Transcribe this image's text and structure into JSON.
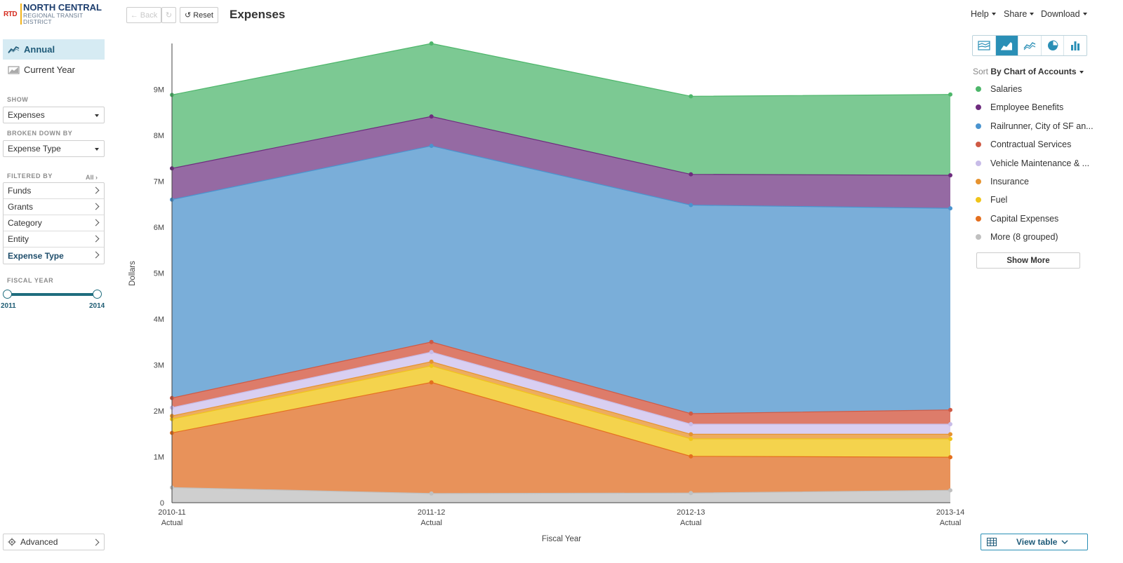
{
  "brand": {
    "short": "RTD",
    "line1": "NORTH CENTRAL",
    "line2": "REGIONAL TRANSIT",
    "line3": "DISTRICT"
  },
  "nav": {
    "annual": "Annual",
    "current_year": "Current Year"
  },
  "show": {
    "label": "SHOW",
    "value": "Expenses"
  },
  "broken_down_by": {
    "label": "BROKEN DOWN BY",
    "value": "Expense Type"
  },
  "filtered_by": {
    "label": "FILTERED BY",
    "all": "All",
    "items": [
      "Funds",
      "Grants",
      "Category",
      "Entity",
      "Expense Type"
    ]
  },
  "fiscal_year": {
    "label": "FISCAL YEAR",
    "min": "2011",
    "max": "2014"
  },
  "advanced": "Advanced",
  "toolbar": {
    "back": "Back",
    "reset": "Reset",
    "title": "Expenses",
    "help": "Help",
    "share": "Share",
    "download": "Download"
  },
  "sort": {
    "prefix": "Sort",
    "value": "By Chart of Accounts"
  },
  "legend": [
    {
      "name": "Salaries",
      "color": "#4db66a"
    },
    {
      "name": "Employee Benefits",
      "color": "#6e2c7e"
    },
    {
      "name": "Railrunner, City of SF an...",
      "color": "#4a94cf"
    },
    {
      "name": "Contractual Services",
      "color": "#cf5a45"
    },
    {
      "name": "Vehicle Maintenance & ...",
      "color": "#c8bce8"
    },
    {
      "name": "Insurance",
      "color": "#e6932f"
    },
    {
      "name": "Fuel",
      "color": "#f0c419"
    },
    {
      "name": "Capital Expenses",
      "color": "#e46f1e"
    },
    {
      "name": "More (8 grouped)",
      "color": "#c0c0c0"
    }
  ],
  "show_more": "Show More",
  "view_table": "View table",
  "chart_data": {
    "type": "area",
    "stacked": true,
    "xlabel": "Fiscal Year",
    "ylabel": "Dollars",
    "ylim": [
      0,
      10000000
    ],
    "yticks": [
      "0",
      "1M",
      "2M",
      "3M",
      "4M",
      "5M",
      "6M",
      "7M",
      "8M",
      "9M"
    ],
    "categories": [
      {
        "year": "2010-11",
        "sub": "Actual"
      },
      {
        "year": "2011-12",
        "sub": "Actual"
      },
      {
        "year": "2012-13",
        "sub": "Actual"
      },
      {
        "year": "2013-14",
        "sub": "Actual"
      }
    ],
    "series": [
      {
        "name": "More (8 grouped)",
        "values": [
          330000,
          200000,
          210000,
          270000
        ],
        "fill": "#cfcfcf",
        "line": "#c0c0c0"
      },
      {
        "name": "Capital Expenses",
        "values": [
          1190000,
          2420000,
          800000,
          720000
        ],
        "fill": "#e8925a",
        "line": "#e46f1e"
      },
      {
        "name": "Fuel",
        "values": [
          300000,
          360000,
          380000,
          400000
        ],
        "fill": "#f4d34d",
        "line": "#f0c419"
      },
      {
        "name": "Insurance",
        "values": [
          70000,
          90000,
          100000,
          100000
        ],
        "fill": "#edac5f",
        "line": "#e6932f"
      },
      {
        "name": "Vehicle Maintenance & ...",
        "values": [
          180000,
          210000,
          220000,
          220000
        ],
        "fill": "#d9cff1",
        "line": "#c8bce8"
      },
      {
        "name": "Contractual Services",
        "values": [
          210000,
          220000,
          230000,
          310000
        ],
        "fill": "#dd7c6a",
        "line": "#cf5a45"
      },
      {
        "name": "Railrunner, City of SF an...",
        "values": [
          4320000,
          4270000,
          4540000,
          4390000
        ],
        "fill": "#7aaed9",
        "line": "#4a94cf"
      },
      {
        "name": "Employee Benefits",
        "values": [
          680000,
          640000,
          670000,
          720000
        ],
        "fill": "#956aa3",
        "line": "#6e2c7e"
      },
      {
        "name": "Salaries",
        "values": [
          1600000,
          1590000,
          1700000,
          1760000
        ],
        "fill": "#7cc993",
        "line": "#4db66a"
      }
    ]
  }
}
